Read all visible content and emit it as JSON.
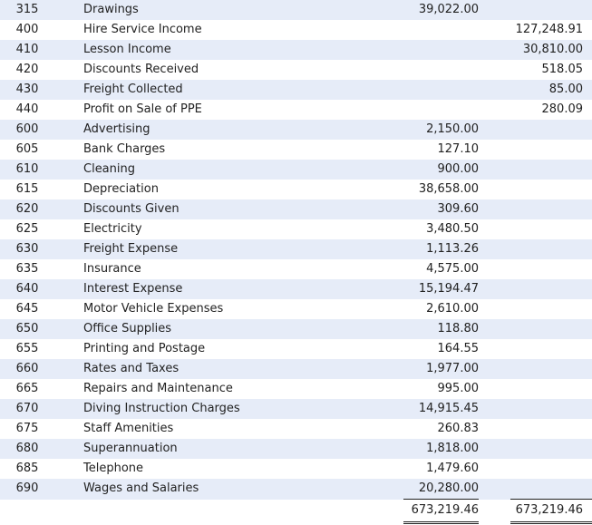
{
  "ledger": {
    "rows": [
      {
        "code": "315",
        "name": "Drawings",
        "debit": "39,022.00",
        "credit": ""
      },
      {
        "code": "400",
        "name": "Hire Service Income",
        "debit": "",
        "credit": "127,248.91"
      },
      {
        "code": "410",
        "name": "Lesson Income",
        "debit": "",
        "credit": "30,810.00"
      },
      {
        "code": "420",
        "name": "Discounts Received",
        "debit": "",
        "credit": "518.05"
      },
      {
        "code": "430",
        "name": "Freight Collected",
        "debit": "",
        "credit": "85.00"
      },
      {
        "code": "440",
        "name": "Profit on Sale of PPE",
        "debit": "",
        "credit": "280.09"
      },
      {
        "code": "600",
        "name": "Advertising",
        "debit": "2,150.00",
        "credit": ""
      },
      {
        "code": "605",
        "name": "Bank Charges",
        "debit": "127.10",
        "credit": ""
      },
      {
        "code": "610",
        "name": "Cleaning",
        "debit": "900.00",
        "credit": ""
      },
      {
        "code": "615",
        "name": "Depreciation",
        "debit": "38,658.00",
        "credit": ""
      },
      {
        "code": "620",
        "name": "Discounts Given",
        "debit": "309.60",
        "credit": ""
      },
      {
        "code": "625",
        "name": "Electricity",
        "debit": "3,480.50",
        "credit": ""
      },
      {
        "code": "630",
        "name": "Freight Expense",
        "debit": "1,113.26",
        "credit": ""
      },
      {
        "code": "635",
        "name": "Insurance",
        "debit": "4,575.00",
        "credit": ""
      },
      {
        "code": "640",
        "name": "Interest Expense",
        "debit": "15,194.47",
        "credit": ""
      },
      {
        "code": "645",
        "name": "Motor Vehicle Expenses",
        "debit": "2,610.00",
        "credit": ""
      },
      {
        "code": "650",
        "name": "Office Supplies",
        "debit": "118.80",
        "credit": ""
      },
      {
        "code": "655",
        "name": "Printing and Postage",
        "debit": "164.55",
        "credit": ""
      },
      {
        "code": "660",
        "name": "Rates and Taxes",
        "debit": "1,977.00",
        "credit": ""
      },
      {
        "code": "665",
        "name": "Repairs and Maintenance",
        "debit": "995.00",
        "credit": ""
      },
      {
        "code": "670",
        "name": "Diving Instruction Charges",
        "debit": "14,915.45",
        "credit": ""
      },
      {
        "code": "675",
        "name": "Staff Amenities",
        "debit": "260.83",
        "credit": ""
      },
      {
        "code": "680",
        "name": "Superannuation",
        "debit": "1,818.00",
        "credit": ""
      },
      {
        "code": "685",
        "name": "Telephone",
        "debit": "1,479.60",
        "credit": ""
      },
      {
        "code": "690",
        "name": "Wages and Salaries",
        "debit": "20,280.00",
        "credit": ""
      }
    ],
    "totals": {
      "debit": "673,219.46",
      "credit": "673,219.46"
    }
  },
  "colors": {
    "row_stripe": "#e6ecf8",
    "row_plain": "#ffffff",
    "text": "#222222"
  }
}
